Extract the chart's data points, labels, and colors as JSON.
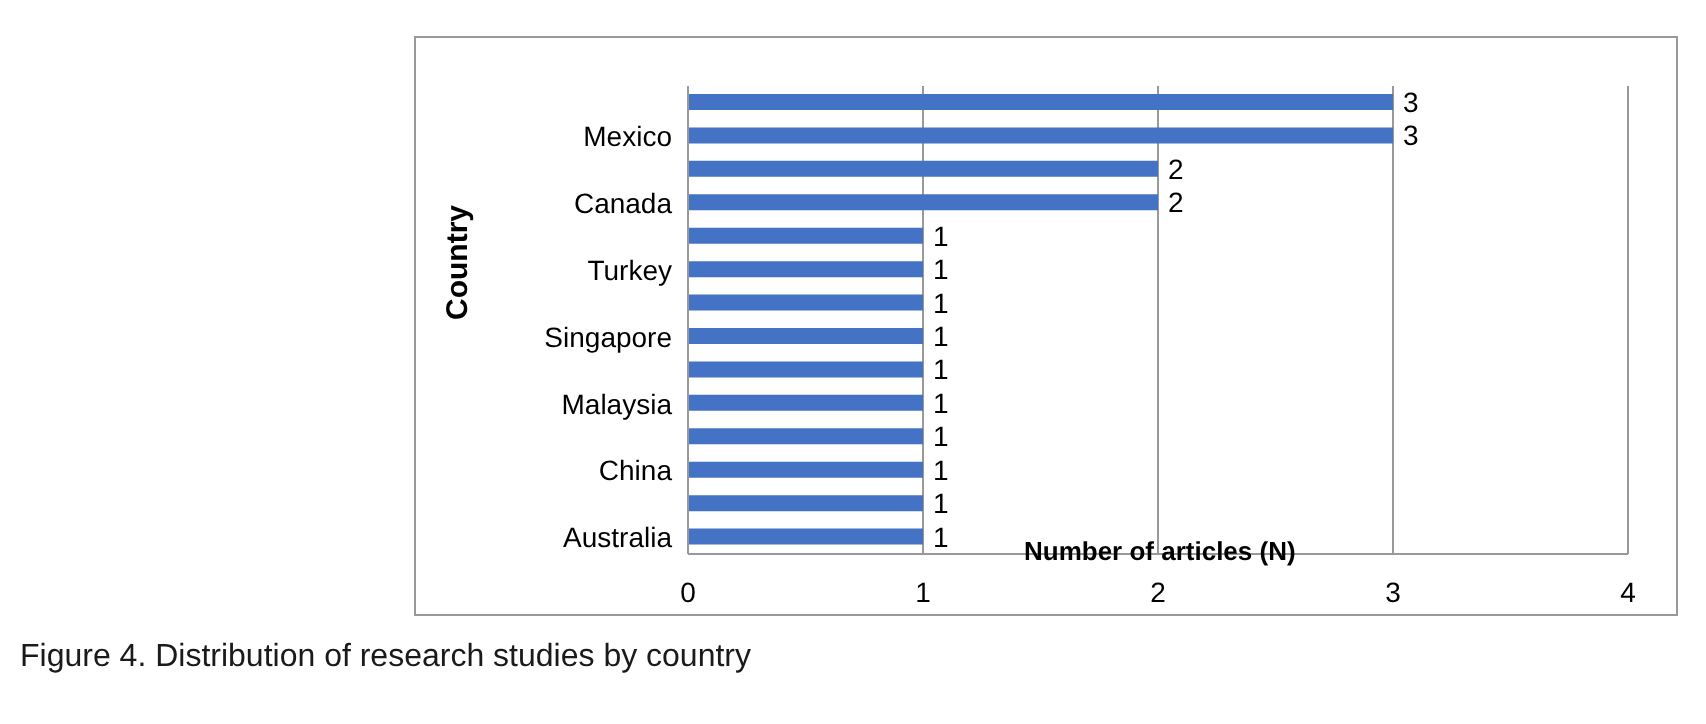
{
  "chart_data": {
    "type": "bar",
    "orientation": "horizontal",
    "xlabel": "Number of articles (N)",
    "ylabel": "Country",
    "categories": [
      null,
      "Mexico",
      null,
      "Canada",
      null,
      "Turkey",
      null,
      "Singapore",
      null,
      "Malaysia",
      null,
      "China",
      null,
      "Australia"
    ],
    "values": [
      3,
      3,
      2,
      2,
      1,
      1,
      1,
      1,
      1,
      1,
      1,
      1,
      1,
      1
    ],
    "color": "#4472c4",
    "xlim": [
      0,
      4
    ],
    "xticks": [
      0,
      1,
      2,
      3,
      4
    ],
    "grid": "x",
    "data_labels": true,
    "annotations": [
      "Figure 4. Distribution of research studies by country"
    ]
  }
}
